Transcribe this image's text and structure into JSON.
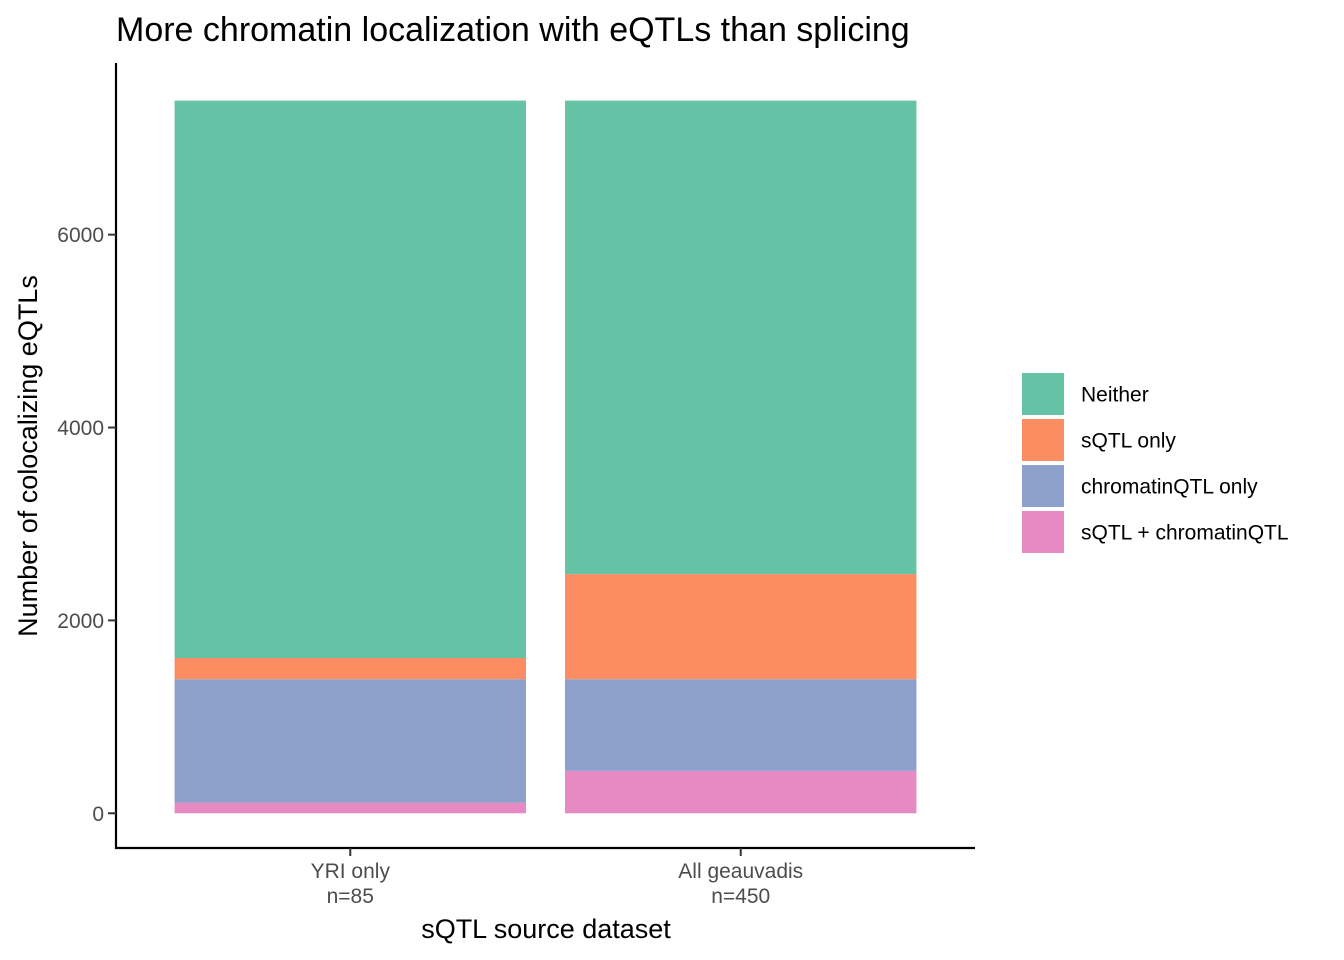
{
  "chart_data": {
    "type": "bar",
    "stacked": true,
    "title": "More chromatin localization with eQTLs than splicing",
    "xlabel": "sQTL source dataset",
    "ylabel": "Number of colocalizing eQTLs",
    "categories": [
      [
        "YRI only",
        "n=85"
      ],
      [
        "All geauvadis",
        "n=450"
      ]
    ],
    "ylim": [
      -360,
      7780
    ],
    "yticks": [
      "0",
      "2000",
      "4000",
      "6000"
    ],
    "series": [
      {
        "name": "sQTL + chromatinQTL",
        "color": "#E78AC3",
        "values": [
          110,
          440
        ]
      },
      {
        "name": "chromatinQTL only",
        "color": "#8DA0CB",
        "values": [
          1280,
          950
        ]
      },
      {
        "name": "sQTL only",
        "color": "#FC8D62",
        "values": [
          220,
          1090
        ]
      },
      {
        "name": "Neither",
        "color": "#66C2A5",
        "values": [
          5780,
          4910
        ]
      }
    ],
    "legend": {
      "position": "right",
      "entries": [
        "Neither",
        "sQTL only",
        "chromatinQTL only",
        "sQTL + chromatinQTL"
      ]
    },
    "grid": false
  }
}
